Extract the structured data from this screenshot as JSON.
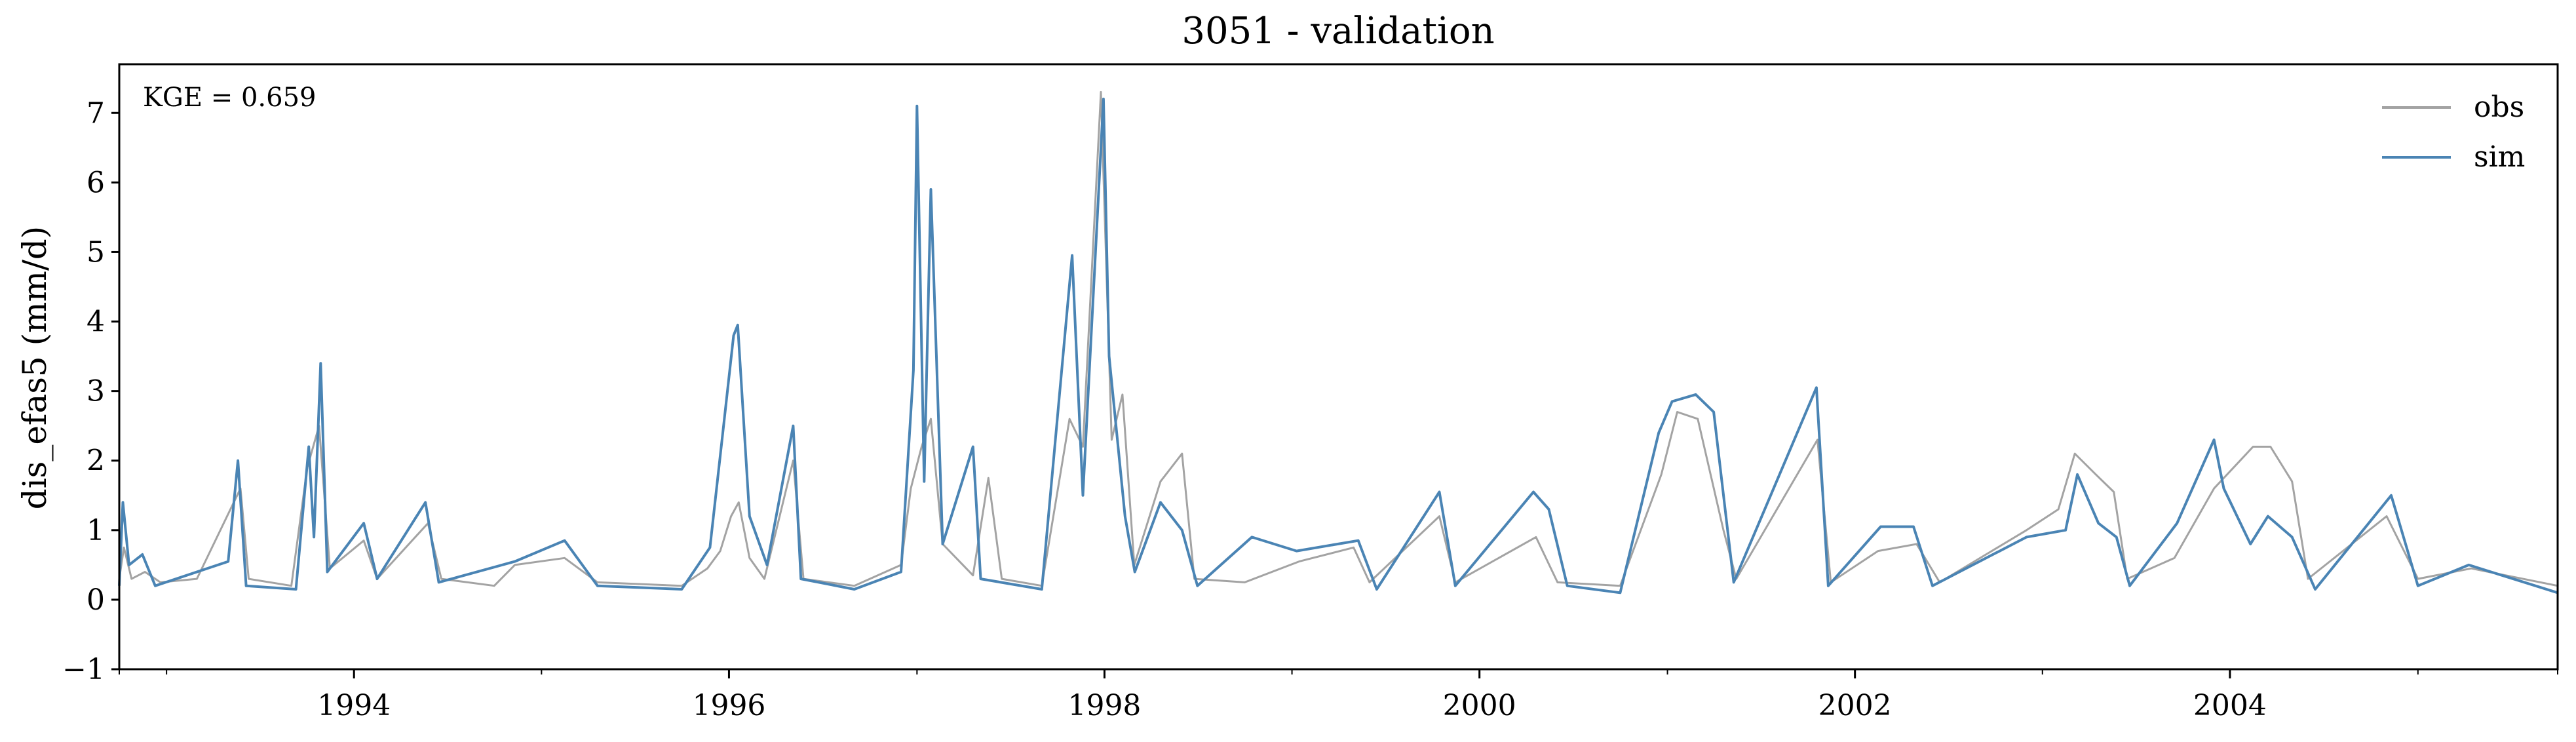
{
  "chart_data": {
    "type": "line",
    "title": "3051 - validation",
    "xlabel": "",
    "ylabel": "dis_efas5 (mm/d)",
    "annotation": "KGE = 0.659",
    "xlim": [
      "1992-10-01",
      "2005-09-30"
    ],
    "ylim": [
      -1,
      7.7
    ],
    "yticks": [
      -1,
      0,
      1,
      2,
      3,
      4,
      5,
      6,
      7
    ],
    "ytick_labels": [
      "−1",
      "0",
      "1",
      "2",
      "3",
      "4",
      "5",
      "6",
      "7"
    ],
    "xticks": [
      "1994-01-01",
      "1996-01-01",
      "1998-01-01",
      "2000-01-01",
      "2002-01-01",
      "2004-01-01"
    ],
    "xtick_labels": [
      "1994",
      "1996",
      "1998",
      "2000",
      "2002",
      "2004"
    ],
    "grid": false,
    "legend": "top-right",
    "series": [
      {
        "name": "obs",
        "color": "#a3a3a3",
        "points": [
          [
            "1992-10-01",
            0.3
          ],
          [
            "1992-10-10",
            0.75
          ],
          [
            "1992-10-25",
            0.3
          ],
          [
            "1992-11-20",
            0.4
          ],
          [
            "1992-12-20",
            0.25
          ],
          [
            "1993-03-01",
            0.3
          ],
          [
            "1993-05-25",
            1.6
          ],
          [
            "1993-06-10",
            0.3
          ],
          [
            "1993-09-01",
            0.2
          ],
          [
            "1993-10-02",
            1.9
          ],
          [
            "1993-10-25",
            2.5
          ],
          [
            "1993-11-15",
            0.45
          ],
          [
            "1994-01-20",
            0.85
          ],
          [
            "1994-02-15",
            0.3
          ],
          [
            "1994-05-25",
            1.1
          ],
          [
            "1994-06-20",
            0.3
          ],
          [
            "1994-10-01",
            0.2
          ],
          [
            "1994-11-10",
            0.5
          ],
          [
            "1995-02-15",
            0.6
          ],
          [
            "1995-04-20",
            0.25
          ],
          [
            "1995-10-01",
            0.2
          ],
          [
            "1995-11-20",
            0.45
          ],
          [
            "1995-12-15",
            0.7
          ],
          [
            "1996-01-05",
            1.2
          ],
          [
            "1996-01-20",
            1.4
          ],
          [
            "1996-02-10",
            0.6
          ],
          [
            "1996-03-10",
            0.3
          ],
          [
            "1996-05-05",
            2.0
          ],
          [
            "1996-05-25",
            0.3
          ],
          [
            "1996-09-01",
            0.2
          ],
          [
            "1996-12-01",
            0.5
          ],
          [
            "1996-12-20",
            1.6
          ],
          [
            "1997-01-10",
            2.2
          ],
          [
            "1997-01-28",
            2.6
          ],
          [
            "1997-02-20",
            0.8
          ],
          [
            "1997-04-20",
            0.35
          ],
          [
            "1997-05-20",
            1.75
          ],
          [
            "1997-06-15",
            0.3
          ],
          [
            "1997-09-01",
            0.2
          ],
          [
            "1997-10-25",
            2.6
          ],
          [
            "1997-11-20",
            2.2
          ],
          [
            "1997-12-25",
            7.3
          ],
          [
            "1998-01-15",
            2.3
          ],
          [
            "1998-02-05",
            2.95
          ],
          [
            "1998-02-28",
            0.5
          ],
          [
            "1998-04-20",
            1.7
          ],
          [
            "1998-06-01",
            2.1
          ],
          [
            "1998-06-25",
            0.3
          ],
          [
            "1998-10-01",
            0.25
          ],
          [
            "1999-01-15",
            0.55
          ],
          [
            "1999-05-01",
            0.75
          ],
          [
            "1999-06-01",
            0.25
          ],
          [
            "1999-10-15",
            1.2
          ],
          [
            "1999-11-15",
            0.25
          ],
          [
            "2000-04-20",
            0.9
          ],
          [
            "2000-06-01",
            0.25
          ],
          [
            "2000-10-01",
            0.2
          ],
          [
            "2000-12-20",
            1.8
          ],
          [
            "2001-01-20",
            2.7
          ],
          [
            "2001-03-01",
            2.6
          ],
          [
            "2001-04-20",
            1.0
          ],
          [
            "2001-05-15",
            0.3
          ],
          [
            "2001-10-20",
            2.3
          ],
          [
            "2001-11-15",
            0.25
          ],
          [
            "2002-02-15",
            0.7
          ],
          [
            "2002-05-01",
            0.8
          ],
          [
            "2002-06-15",
            0.25
          ],
          [
            "2002-12-01",
            1.0
          ],
          [
            "2003-02-01",
            1.3
          ],
          [
            "2003-03-05",
            2.1
          ],
          [
            "2003-04-15",
            1.8
          ],
          [
            "2003-05-20",
            1.55
          ],
          [
            "2003-06-15",
            0.3
          ],
          [
            "2003-09-15",
            0.6
          ],
          [
            "2003-12-01",
            1.6
          ],
          [
            "2004-02-15",
            2.2
          ],
          [
            "2004-03-20",
            2.2
          ],
          [
            "2004-05-01",
            1.7
          ],
          [
            "2004-06-01",
            0.3
          ],
          [
            "2004-11-01",
            1.2
          ],
          [
            "2005-01-01",
            0.3
          ],
          [
            "2005-04-15",
            0.45
          ],
          [
            "2005-09-30",
            0.2
          ]
        ]
      },
      {
        "name": "sim",
        "color": "#4a84b4",
        "points": [
          [
            "1992-10-01",
            0.2
          ],
          [
            "1992-10-08",
            1.4
          ],
          [
            "1992-10-20",
            0.5
          ],
          [
            "1992-11-15",
            0.65
          ],
          [
            "1992-12-10",
            0.2
          ],
          [
            "1993-05-01",
            0.55
          ],
          [
            "1993-05-20",
            2.0
          ],
          [
            "1993-06-05",
            0.2
          ],
          [
            "1993-09-10",
            0.15
          ],
          [
            "1993-10-05",
            2.2
          ],
          [
            "1993-10-15",
            0.9
          ],
          [
            "1993-10-28",
            3.4
          ],
          [
            "1993-11-10",
            0.4
          ],
          [
            "1994-01-20",
            1.1
          ],
          [
            "1994-02-15",
            0.3
          ],
          [
            "1994-05-20",
            1.4
          ],
          [
            "1994-06-15",
            0.25
          ],
          [
            "1994-11-10",
            0.55
          ],
          [
            "1995-02-15",
            0.85
          ],
          [
            "1995-04-20",
            0.2
          ],
          [
            "1995-10-01",
            0.15
          ],
          [
            "1995-11-25",
            0.75
          ],
          [
            "1995-12-20",
            2.4
          ],
          [
            "1996-01-10",
            3.8
          ],
          [
            "1996-01-18",
            3.95
          ],
          [
            "1996-02-10",
            1.2
          ],
          [
            "1996-03-15",
            0.5
          ],
          [
            "1996-05-05",
            2.5
          ],
          [
            "1996-05-20",
            0.3
          ],
          [
            "1996-09-01",
            0.15
          ],
          [
            "1996-12-01",
            0.4
          ],
          [
            "1996-12-25",
            3.3
          ],
          [
            "1997-01-01",
            7.1
          ],
          [
            "1997-01-15",
            1.7
          ],
          [
            "1997-01-28",
            5.9
          ],
          [
            "1997-02-20",
            0.8
          ],
          [
            "1997-04-20",
            2.2
          ],
          [
            "1997-05-05",
            0.3
          ],
          [
            "1997-09-01",
            0.15
          ],
          [
            "1997-10-30",
            4.95
          ],
          [
            "1997-11-20",
            1.5
          ],
          [
            "1997-12-30",
            7.2
          ],
          [
            "1998-01-10",
            3.5
          ],
          [
            "1998-02-10",
            1.2
          ],
          [
            "1998-03-01",
            0.4
          ],
          [
            "1998-04-20",
            1.4
          ],
          [
            "1998-06-01",
            1.0
          ],
          [
            "1998-07-01",
            0.2
          ],
          [
            "1998-10-15",
            0.9
          ],
          [
            "1999-01-10",
            0.7
          ],
          [
            "1999-05-10",
            0.85
          ],
          [
            "1999-06-15",
            0.15
          ],
          [
            "1999-10-15",
            1.55
          ],
          [
            "1999-11-15",
            0.2
          ],
          [
            "2000-04-15",
            1.55
          ],
          [
            "2000-05-15",
            1.3
          ],
          [
            "2000-06-20",
            0.2
          ],
          [
            "2000-10-01",
            0.1
          ],
          [
            "2000-12-15",
            2.4
          ],
          [
            "2001-01-10",
            2.85
          ],
          [
            "2001-02-25",
            2.95
          ],
          [
            "2001-04-01",
            2.7
          ],
          [
            "2001-05-10",
            0.25
          ],
          [
            "2001-10-18",
            3.05
          ],
          [
            "2001-11-10",
            0.2
          ],
          [
            "2002-02-20",
            1.05
          ],
          [
            "2002-04-25",
            1.05
          ],
          [
            "2002-06-01",
            0.2
          ],
          [
            "2002-12-01",
            0.9
          ],
          [
            "2003-02-15",
            1.0
          ],
          [
            "2003-03-10",
            1.8
          ],
          [
            "2003-04-20",
            1.1
          ],
          [
            "2003-05-25",
            0.9
          ],
          [
            "2003-06-20",
            0.2
          ],
          [
            "2003-09-20",
            1.1
          ],
          [
            "2003-12-01",
            2.3
          ],
          [
            "2003-12-20",
            1.6
          ],
          [
            "2004-02-10",
            0.8
          ],
          [
            "2004-03-15",
            1.2
          ],
          [
            "2004-05-01",
            0.9
          ],
          [
            "2004-06-15",
            0.15
          ],
          [
            "2004-11-10",
            1.5
          ],
          [
            "2005-01-01",
            0.2
          ],
          [
            "2005-04-10",
            0.5
          ],
          [
            "2005-09-30",
            0.1
          ]
        ]
      }
    ]
  }
}
